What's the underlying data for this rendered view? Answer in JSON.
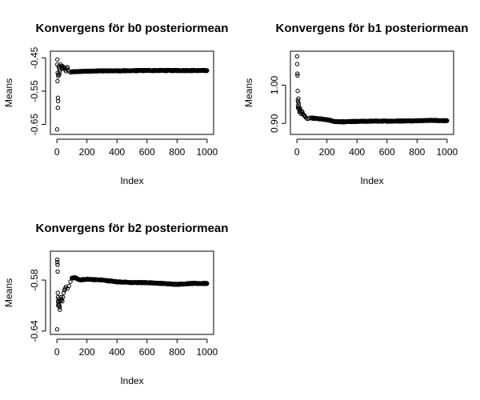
{
  "chart_data": [
    {
      "type": "scatter",
      "title": "Konvergens för b0 posteriormean",
      "xlabel": "Index",
      "ylabel": "Means",
      "xlim": [
        0,
        1000
      ],
      "ylim": [
        -0.67,
        -0.44
      ],
      "xticks": [
        0,
        200,
        400,
        600,
        800,
        1000
      ],
      "xtick_labels": [
        "0",
        "200",
        "400",
        "600",
        "800",
        "1000"
      ],
      "yticks": [
        -0.45,
        -0.55,
        -0.65
      ],
      "ytick_labels": [
        "-0.45",
        "-0.55",
        "-0.65"
      ],
      "marker": "open-circle",
      "early_points": [
        [
          1,
          -0.665
        ],
        [
          2,
          -0.47
        ],
        [
          3,
          -0.455
        ],
        [
          4,
          -0.52
        ],
        [
          5,
          -0.495
        ],
        [
          6,
          -0.6
        ],
        [
          7,
          -0.57
        ],
        [
          8,
          -0.58
        ],
        [
          9,
          -0.505
        ],
        [
          10,
          -0.5
        ],
        [
          12,
          -0.475
        ],
        [
          14,
          -0.48
        ],
        [
          16,
          -0.5
        ],
        [
          18,
          -0.485
        ],
        [
          20,
          -0.49
        ],
        [
          24,
          -0.47
        ],
        [
          28,
          -0.475
        ],
        [
          32,
          -0.48
        ],
        [
          36,
          -0.475
        ],
        [
          40,
          -0.482
        ],
        [
          45,
          -0.478
        ],
        [
          50,
          -0.48
        ],
        [
          55,
          -0.485
        ],
        [
          60,
          -0.49
        ],
        [
          65,
          -0.482
        ],
        [
          70,
          -0.478
        ],
        [
          75,
          -0.486
        ],
        [
          80,
          -0.49
        ],
        [
          90,
          -0.494
        ],
        [
          100,
          -0.492
        ]
      ],
      "trend": [
        [
          100,
          -0.492
        ],
        [
          150,
          -0.491
        ],
        [
          200,
          -0.49
        ],
        [
          300,
          -0.489
        ],
        [
          400,
          -0.489
        ],
        [
          600,
          -0.488
        ],
        [
          800,
          -0.488
        ],
        [
          1000,
          -0.488
        ]
      ]
    },
    {
      "type": "scatter",
      "title": "Konvergens för b1 posteriormean",
      "xlabel": "Index",
      "ylabel": "Means",
      "xlim": [
        0,
        1000
      ],
      "ylim": [
        0.88,
        1.08
      ],
      "xticks": [
        0,
        200,
        400,
        600,
        800,
        1000
      ],
      "xtick_labels": [
        "0",
        "200",
        "400",
        "600",
        "800",
        "1000"
      ],
      "yticks": [
        0.9,
        1.0
      ],
      "ytick_labels": [
        "0.90",
        "1.00"
      ],
      "marker": "open-circle",
      "early_points": [
        [
          1,
          1.075
        ],
        [
          2,
          1.055
        ],
        [
          3,
          1.03
        ],
        [
          4,
          1.025
        ],
        [
          5,
          0.985
        ],
        [
          6,
          0.96
        ],
        [
          7,
          0.945
        ],
        [
          8,
          0.94
        ],
        [
          9,
          0.955
        ],
        [
          10,
          0.965
        ],
        [
          12,
          0.95
        ],
        [
          14,
          0.94
        ],
        [
          16,
          0.93
        ],
        [
          18,
          0.935
        ],
        [
          20,
          0.94
        ],
        [
          24,
          0.93
        ],
        [
          28,
          0.925
        ],
        [
          32,
          0.932
        ],
        [
          36,
          0.93
        ],
        [
          40,
          0.925
        ],
        [
          45,
          0.922
        ],
        [
          50,
          0.92
        ],
        [
          55,
          0.918
        ],
        [
          60,
          0.915
        ],
        [
          70,
          0.912
        ],
        [
          80,
          0.913
        ],
        [
          90,
          0.915
        ],
        [
          100,
          0.914
        ]
      ],
      "trend": [
        [
          100,
          0.914
        ],
        [
          150,
          0.912
        ],
        [
          200,
          0.91
        ],
        [
          250,
          0.905
        ],
        [
          300,
          0.904
        ],
        [
          350,
          0.905
        ],
        [
          400,
          0.905
        ],
        [
          500,
          0.906
        ],
        [
          600,
          0.906
        ],
        [
          800,
          0.907
        ],
        [
          900,
          0.908
        ],
        [
          1000,
          0.907
        ]
      ]
    },
    {
      "type": "scatter",
      "title": "Konvergens för b2 posteriormean",
      "xlabel": "Index",
      "ylabel": "Means",
      "xlim": [
        0,
        1000
      ],
      "ylim": [
        -0.64,
        -0.55
      ],
      "xticks": [
        0,
        200,
        400,
        600,
        800,
        1000
      ],
      "xtick_labels": [
        "0",
        "200",
        "400",
        "600",
        "800",
        "1000"
      ],
      "yticks": [
        -0.58,
        -0.64
      ],
      "ytick_labels": [
        "-0.58",
        "-0.64"
      ],
      "marker": "open-circle",
      "early_points": [
        [
          1,
          -0.638
        ],
        [
          2,
          -0.556
        ],
        [
          3,
          -0.559
        ],
        [
          4,
          -0.562
        ],
        [
          5,
          -0.57
        ],
        [
          6,
          -0.595
        ],
        [
          7,
          -0.6
        ],
        [
          8,
          -0.605
        ],
        [
          9,
          -0.61
        ],
        [
          10,
          -0.608
        ],
        [
          12,
          -0.602
        ],
        [
          14,
          -0.605
        ],
        [
          16,
          -0.61
        ],
        [
          18,
          -0.612
        ],
        [
          20,
          -0.615
        ],
        [
          24,
          -0.605
        ],
        [
          28,
          -0.6
        ],
        [
          32,
          -0.603
        ],
        [
          36,
          -0.605
        ],
        [
          40,
          -0.6
        ],
        [
          45,
          -0.595
        ],
        [
          50,
          -0.592
        ],
        [
          55,
          -0.59
        ],
        [
          60,
          -0.588
        ],
        [
          70,
          -0.59
        ],
        [
          80,
          -0.587
        ],
        [
          90,
          -0.582
        ],
        [
          100,
          -0.578
        ]
      ],
      "trend": [
        [
          100,
          -0.578
        ],
        [
          120,
          -0.577
        ],
        [
          150,
          -0.58
        ],
        [
          200,
          -0.579
        ],
        [
          300,
          -0.58
        ],
        [
          400,
          -0.582
        ],
        [
          500,
          -0.583
        ],
        [
          600,
          -0.583
        ],
        [
          700,
          -0.584
        ],
        [
          800,
          -0.585
        ],
        [
          900,
          -0.584
        ],
        [
          1000,
          -0.584
        ]
      ]
    }
  ]
}
